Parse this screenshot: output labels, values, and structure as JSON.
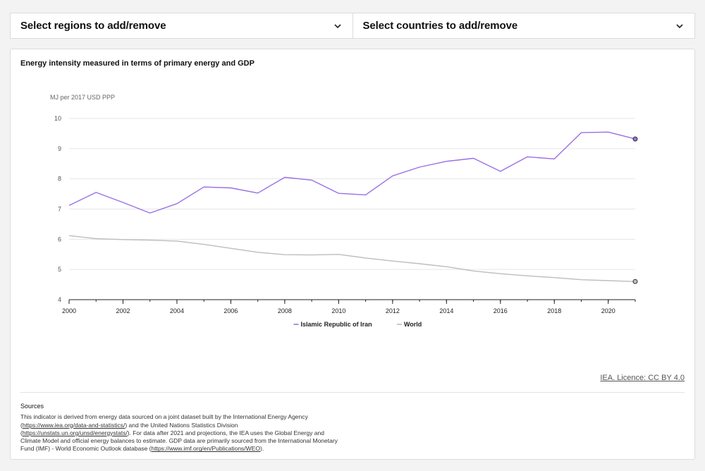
{
  "selectors": {
    "regions_label": "Select regions to add/remove",
    "countries_label": "Select countries to add/remove"
  },
  "colors": {
    "iran": "#9b6fe6",
    "world": "#bdbdbd",
    "grid": "#e6e6e6",
    "axis": "#222222"
  },
  "chart_data": {
    "type": "line",
    "title": "Energy intensity measured in terms of primary energy and GDP",
    "ylabel": "MJ per 2017 USD PPP",
    "xlabel": "",
    "ylim": [
      4,
      10
    ],
    "xlim": [
      2000,
      2021
    ],
    "yticks": [
      4,
      5,
      6,
      7,
      8,
      9,
      10
    ],
    "xticks": [
      2000,
      2002,
      2004,
      2006,
      2008,
      2010,
      2012,
      2014,
      2016,
      2018,
      2020
    ],
    "grid": true,
    "legend_position": "bottom-center",
    "x": [
      2000,
      2001,
      2002,
      2003,
      2004,
      2005,
      2006,
      2007,
      2008,
      2009,
      2010,
      2011,
      2012,
      2013,
      2014,
      2015,
      2016,
      2017,
      2018,
      2019,
      2020,
      2021
    ],
    "series": [
      {
        "name": "Islamic Republic of Iran",
        "color_key": "iran",
        "values": [
          7.12,
          7.55,
          7.22,
          6.87,
          7.18,
          7.73,
          7.7,
          7.53,
          8.05,
          7.96,
          7.52,
          7.47,
          8.1,
          8.39,
          8.58,
          8.68,
          8.25,
          8.73,
          8.66,
          9.53,
          9.55,
          9.32
        ]
      },
      {
        "name": "World",
        "color_key": "world",
        "values": [
          6.12,
          6.02,
          5.99,
          5.97,
          5.94,
          5.83,
          5.7,
          5.57,
          5.49,
          5.48,
          5.5,
          5.38,
          5.28,
          5.19,
          5.09,
          4.95,
          4.86,
          4.79,
          4.73,
          4.66,
          4.63,
          4.6
        ]
      }
    ]
  },
  "licence": "IEA. Licence: CC BY 4.0",
  "sources": {
    "heading": "Sources",
    "t1": "This indicator is derived from energy data sourced on a joint dataset built by the International Energy Agency (",
    "link1": "https://www.iea.org/data-and-statistics/",
    "t2": ") and the United Nations Statistics Division (",
    "link2": "https://unstats.un.org/unsd/energystats/",
    "t3": "). For data after 2021 and projections, the IEA uses the Global Energy and Climate Model and official energy balances to estimate. GDP data are primarily sourced from the International Monetary Fund (IMF) - World Economic Outlook database (",
    "link3": "https://www.imf.org/en/Publications/WEO",
    "t4": ")."
  }
}
